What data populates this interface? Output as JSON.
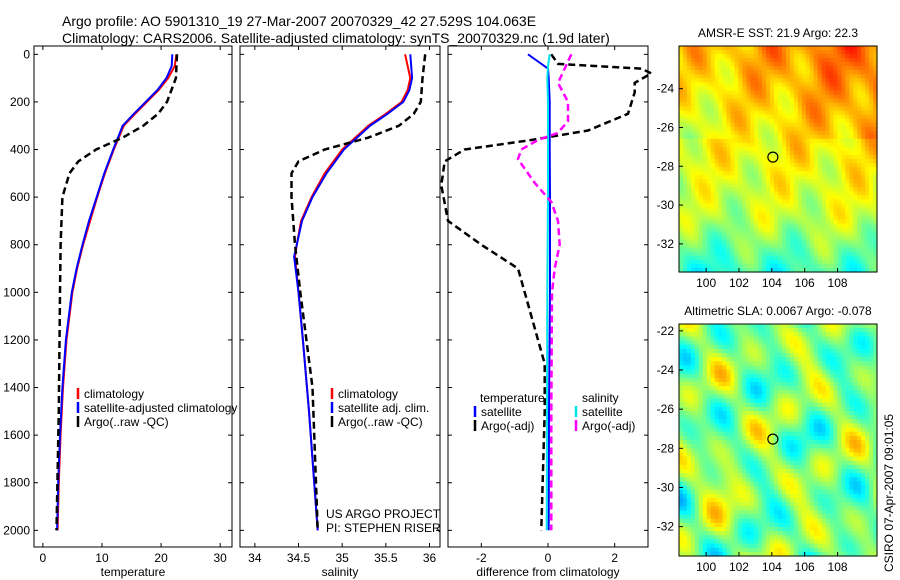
{
  "header": {
    "line1": "Argo profile: AO 5901310_19 27-Mar-2007 20070329_42 27.529S 104.063E",
    "line2": "Climatology: CARS2006. Satellite-adjusted climatology: synTS_20070329.nc (1.9d later)"
  },
  "footer_credit": "CSIRO 07-Apr-2007 09:01:05",
  "project_credit": [
    "US ARGO PROJECT",
    "PI: STEPHEN RISER"
  ],
  "colors": {
    "climatology": "#ff0000",
    "satellite": "#0000ff",
    "argo": "#000000",
    "sal_satellite": "#00e5ee",
    "sal_argo": "#ff00ff"
  },
  "chart_data": [
    {
      "type": "line",
      "xlabel": "temperature",
      "ylabel": "",
      "xlim": [
        -1.5,
        32
      ],
      "ylim": [
        2070,
        -35
      ],
      "xticks": [
        0,
        10,
        20,
        30
      ],
      "yticks": [
        0,
        200,
        400,
        600,
        800,
        1000,
        1200,
        1400,
        1600,
        1800,
        2000
      ],
      "legend": {
        "placement": "bottom-right",
        "entries": [
          "climatology",
          "satellite-adjusted climatology",
          "Argo(..raw -QC)"
        ]
      },
      "series": [
        {
          "name": "climatology",
          "color": "#ff0000",
          "dash": false,
          "depth": [
            0,
            50,
            100,
            150,
            200,
            250,
            300,
            400,
            500,
            600,
            700,
            800,
            900,
            1000,
            1200,
            1400,
            1600,
            1800,
            2000
          ],
          "values": [
            22.6,
            22.3,
            21.2,
            19.6,
            17.6,
            15.6,
            13.7,
            12.0,
            10.5,
            9.2,
            8.0,
            6.8,
            5.8,
            5.0,
            4.0,
            3.4,
            3.0,
            2.7,
            2.5
          ]
        },
        {
          "name": "satellite-adjusted climatology",
          "color": "#0000ff",
          "dash": false,
          "depth": [
            0,
            50,
            100,
            150,
            200,
            250,
            300,
            400,
            500,
            600,
            700,
            800,
            900,
            1000,
            1200,
            1400,
            1600,
            1800,
            2000
          ],
          "values": [
            21.9,
            21.8,
            20.9,
            19.4,
            17.4,
            15.4,
            13.5,
            11.9,
            10.4,
            9.1,
            7.8,
            6.7,
            5.7,
            4.9,
            3.9,
            3.3,
            2.9,
            2.6,
            2.4
          ]
        },
        {
          "name": "Argo(..raw -QC)",
          "color": "#000000",
          "dash": true,
          "depth": [
            0,
            100,
            200,
            250,
            300,
            350,
            400,
            450,
            500,
            600,
            800,
            1000,
            1500,
            2000
          ],
          "values": [
            22.7,
            22.5,
            21.0,
            19.5,
            17.0,
            13.5,
            9.0,
            6.0,
            4.5,
            3.3,
            3.0,
            2.9,
            2.7,
            2.3
          ]
        }
      ]
    },
    {
      "type": "line",
      "xlabel": "salinity",
      "xlim": [
        33.83,
        36.12
      ],
      "ylim": [
        2070,
        -35
      ],
      "xticks": [
        34,
        34.5,
        35,
        35.5,
        36
      ],
      "legend": {
        "placement": "bottom-right",
        "entries": [
          "climatology",
          "satellite adj. clim.",
          "Argo(..raw -QC)"
        ]
      },
      "series": [
        {
          "name": "climatology",
          "color": "#ff0000",
          "dash": false,
          "depth": [
            0,
            100,
            150,
            200,
            250,
            300,
            400,
            500,
            600,
            700,
            800,
            850,
            1000,
            1200,
            1500,
            2000
          ],
          "values": [
            35.72,
            35.78,
            35.75,
            35.68,
            35.5,
            35.3,
            35.0,
            34.8,
            34.65,
            34.53,
            34.48,
            34.46,
            34.5,
            34.55,
            34.62,
            34.72
          ]
        },
        {
          "name": "satellite adj. clim.",
          "color": "#0000ff",
          "dash": false,
          "depth": [
            0,
            100,
            150,
            200,
            250,
            300,
            400,
            500,
            600,
            700,
            800,
            850,
            1000,
            1200,
            1500,
            2000
          ],
          "values": [
            35.78,
            35.8,
            35.77,
            35.7,
            35.52,
            35.32,
            35.02,
            34.82,
            34.66,
            34.54,
            34.48,
            34.45,
            34.5,
            34.55,
            34.62,
            34.72
          ]
        },
        {
          "name": "Argo(..raw -QC)",
          "color": "#000000",
          "dash": true,
          "depth": [
            0,
            100,
            200,
            250,
            300,
            350,
            400,
            450,
            500,
            600,
            800,
            1000,
            1400,
            2000
          ],
          "values": [
            35.95,
            35.92,
            35.9,
            35.82,
            35.65,
            35.3,
            34.8,
            34.5,
            34.42,
            34.42,
            34.46,
            34.52,
            34.66,
            34.72
          ]
        }
      ]
    },
    {
      "type": "line",
      "xlabel": "difference from climatology",
      "xlim": [
        -3,
        3
      ],
      "ylim": [
        2070,
        -35
      ],
      "xticks": [
        -2,
        0,
        2
      ],
      "legend": {
        "placement": "bottom",
        "groups": [
          "temperature",
          "salinity"
        ],
        "entries": [
          "satellite",
          "Argo(-adj)",
          "satellite",
          "Argo(-adj)"
        ]
      },
      "series": [
        {
          "name": "temperature satellite",
          "color": "#0000ff",
          "dash": false,
          "depth": [
            0,
            30,
            60,
            100,
            200,
            400,
            600,
            1000,
            1500,
            2000
          ],
          "values": [
            -0.6,
            -0.3,
            0.0,
            0.02,
            0.05,
            0.05,
            0.06,
            0.06,
            0.03,
            0.02
          ]
        },
        {
          "name": "temperature Argo(-adj)",
          "color": "#000000",
          "dash": true,
          "depth": [
            0,
            40,
            60,
            80,
            120,
            160,
            250,
            320,
            360,
            400,
            450,
            550,
            700,
            800,
            900,
            1000,
            1200,
            1300,
            1500,
            2000
          ],
          "values": [
            0.1,
            0.3,
            2.8,
            3.1,
            2.6,
            2.6,
            2.4,
            1.2,
            -0.5,
            -2.5,
            -3.1,
            -3.2,
            -3.0,
            -2.0,
            -0.9,
            -0.7,
            -0.3,
            -0.1,
            -0.1,
            -0.2
          ]
        },
        {
          "name": "salinity satellite",
          "color": "#00e5ee",
          "dash": false,
          "depth": [
            0,
            50,
            100,
            200,
            400,
            600,
            1000,
            1500,
            2000
          ],
          "values": [
            0.05,
            0.0,
            -0.02,
            0.0,
            0.0,
            0.0,
            -0.02,
            -0.03,
            -0.04
          ]
        },
        {
          "name": "salinity Argo(-adj)",
          "color": "#ff00ff",
          "dash": true,
          "depth": [
            0,
            60,
            120,
            200,
            280,
            330,
            360,
            400,
            440,
            480,
            540,
            620,
            700,
            800,
            900,
            1000,
            1500,
            2000
          ],
          "values": [
            0.7,
            0.5,
            0.3,
            0.6,
            0.6,
            0.3,
            -0.3,
            -0.8,
            -0.9,
            -0.7,
            -0.4,
            0.1,
            0.3,
            0.35,
            0.2,
            0.12,
            0.1,
            0.1
          ]
        }
      ]
    }
  ],
  "maps": [
    {
      "title": "AMSR-E SST: 21.9 Argo: 22.3",
      "lon_range": [
        98.35,
        110.4
      ],
      "lat_range": [
        -33.45,
        -21.8
      ],
      "lon_ticks": [
        100,
        102,
        104,
        106,
        108
      ],
      "lat_ticks": [
        -24,
        -26,
        -28,
        -30,
        -32
      ],
      "marker": [
        104.063,
        -27.529
      ]
    },
    {
      "title": "Altimetric SLA: 0.0067 Argo: -0.078",
      "lon_range": [
        98.35,
        110.4
      ],
      "lat_range": [
        -33.5,
        -21.65
      ],
      "lon_ticks": [
        100,
        102,
        104,
        106,
        108
      ],
      "lat_ticks": [
        -22,
        -24,
        -26,
        -28,
        -30,
        -32
      ],
      "marker": [
        104.063,
        -27.529
      ]
    }
  ]
}
